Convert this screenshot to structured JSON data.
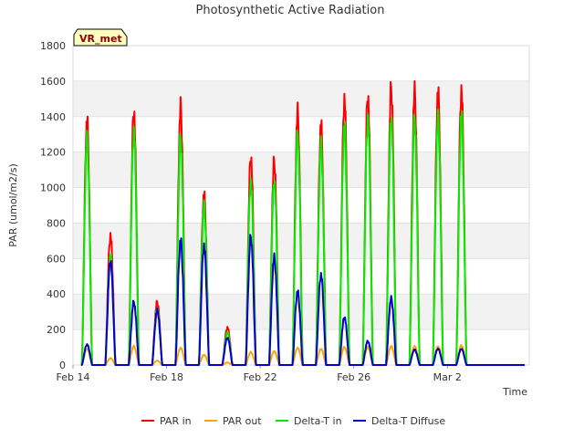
{
  "chart_data": {
    "type": "line",
    "title": "Photosynthetic Active Radiation",
    "xlabel": "Time",
    "ylabel": "PAR (umol/m2/s)",
    "ylim": [
      0,
      1800
    ],
    "yticks": [
      0,
      200,
      400,
      600,
      800,
      1000,
      1200,
      1400,
      1600,
      1800
    ],
    "xlim": [
      14,
      33.5
    ],
    "xticks": [
      {
        "value": 14,
        "label": "Feb 14"
      },
      {
        "value": 18,
        "label": "Feb 18"
      },
      {
        "value": 22,
        "label": "Feb 22"
      },
      {
        "value": 26,
        "label": "Feb 26"
      },
      {
        "value": 30,
        "label": "Mar 2"
      }
    ],
    "grid": "horizontal alternating bands",
    "legend_position": "bottom",
    "station_badge": "VR_met",
    "x_unit": "day of February (fractional)",
    "days": [
      14,
      15,
      16,
      17,
      18,
      19,
      20,
      21,
      22,
      23,
      24,
      25,
      26,
      27,
      28,
      29,
      30,
      31,
      32
    ],
    "series": [
      {
        "name": "PAR in",
        "color": "#ff0000",
        "daily_peaks": [
          1430,
          760,
          1490,
          370,
          1510,
          1000,
          220,
          1220,
          1200,
          1480,
          1410,
          1560,
          1580,
          1630,
          1600,
          1600,
          1610
        ]
      },
      {
        "name": "PAR out",
        "color": "#ffa500",
        "daily_peaks": [
          95,
          40,
          110,
          25,
          100,
          60,
          15,
          75,
          80,
          100,
          95,
          105,
          105,
          110,
          110,
          110,
          115
        ]
      },
      {
        "name": "Delta-T in",
        "color": "#00ee00",
        "daily_peaks": [
          1320,
          640,
          1370,
          330,
          1330,
          930,
          190,
          1070,
          1080,
          1350,
          1290,
          1400,
          1440,
          1450,
          1440,
          1440,
          1460
        ]
      },
      {
        "name": "Delta-T Diffuse",
        "color": "#0000cc",
        "daily_peaks": [
          120,
          610,
          370,
          320,
          730,
          700,
          160,
          750,
          630,
          430,
          530,
          280,
          140,
          390,
          90,
          95,
          95
        ]
      }
    ],
    "day_offsets": [
      14.6,
      15.6,
      16.6,
      17.6,
      18.6,
      19.6,
      20.6,
      21.6,
      22.6,
      23.6,
      24.6,
      25.6,
      26.6,
      27.6,
      28.6,
      29.6,
      30.6
    ]
  }
}
